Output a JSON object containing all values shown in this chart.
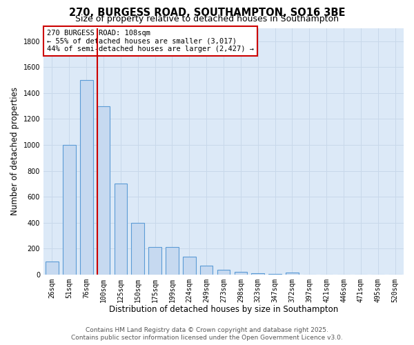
{
  "title": "270, BURGESS ROAD, SOUTHAMPTON, SO16 3BE",
  "subtitle": "Size of property relative to detached houses in Southampton",
  "xlabel": "Distribution of detached houses by size in Southampton",
  "ylabel": "Number of detached properties",
  "categories": [
    "26sqm",
    "51sqm",
    "76sqm",
    "100sqm",
    "125sqm",
    "150sqm",
    "175sqm",
    "199sqm",
    "224sqm",
    "249sqm",
    "273sqm",
    "298sqm",
    "323sqm",
    "347sqm",
    "372sqm",
    "397sqm",
    "421sqm",
    "446sqm",
    "471sqm",
    "495sqm",
    "520sqm"
  ],
  "values": [
    100,
    1000,
    1500,
    1300,
    700,
    400,
    210,
    210,
    135,
    70,
    35,
    20,
    10,
    5,
    15,
    0,
    0,
    0,
    0,
    0,
    0
  ],
  "bar_color": "#c6d9f0",
  "bar_edge_color": "#5b9bd5",
  "vline_index": 3,
  "vline_color": "#cc0000",
  "annotation_line1": "270 BURGESS ROAD: 108sqm",
  "annotation_line2": "← 55% of detached houses are smaller (3,017)",
  "annotation_line3": "44% of semi-detached houses are larger (2,427) →",
  "box_edge_color": "#cc0000",
  "ylim": [
    0,
    1900
  ],
  "yticks": [
    0,
    200,
    400,
    600,
    800,
    1000,
    1200,
    1400,
    1600,
    1800
  ],
  "grid_color": "#c8d8ea",
  "background_color": "#dce9f7",
  "footer_line1": "Contains HM Land Registry data © Crown copyright and database right 2025.",
  "footer_line2": "Contains public sector information licensed under the Open Government Licence v3.0.",
  "title_fontsize": 10.5,
  "subtitle_fontsize": 9,
  "xlabel_fontsize": 8.5,
  "ylabel_fontsize": 8.5,
  "tick_fontsize": 7,
  "annotation_fontsize": 7.5,
  "footer_fontsize": 6.5,
  "bar_width": 0.75
}
